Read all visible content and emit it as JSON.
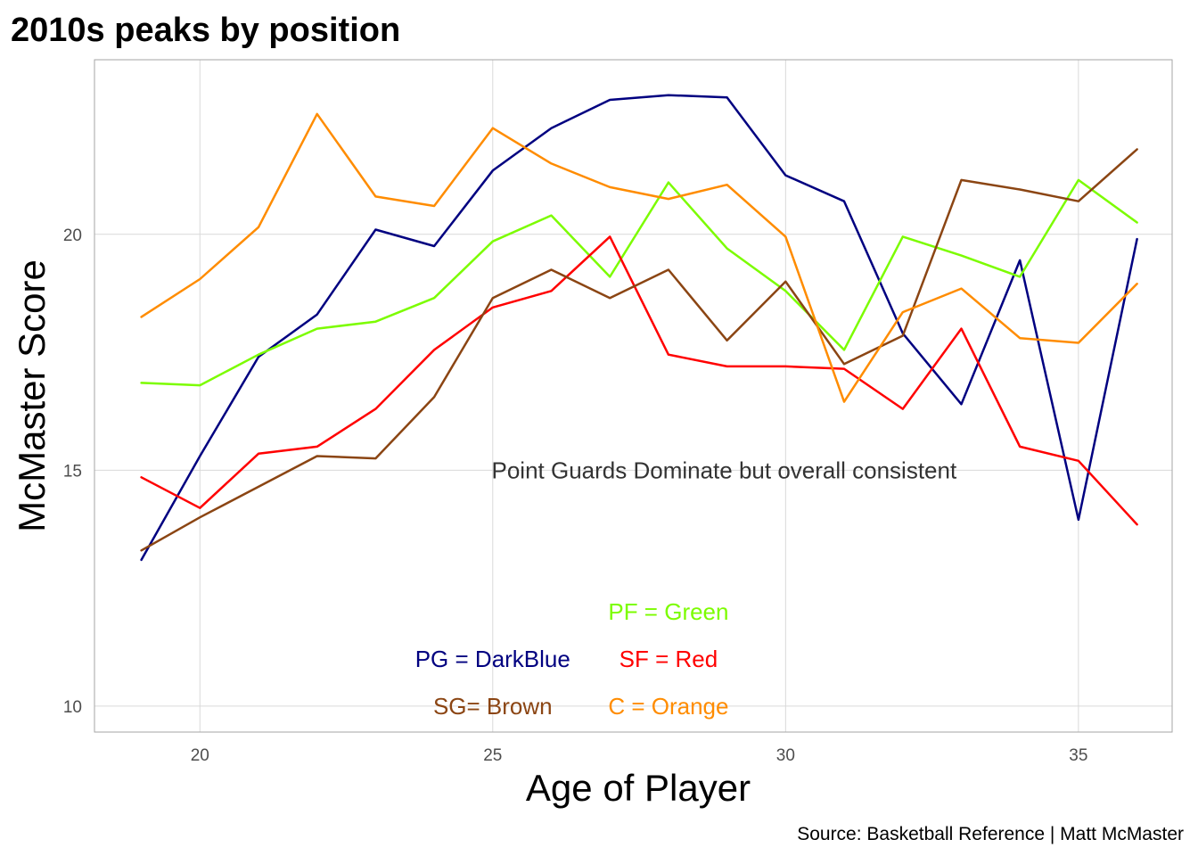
{
  "chart_data": {
    "type": "line",
    "title": "2010s peaks by position",
    "xlabel": "Age of Player",
    "ylabel": "McMaster Score",
    "xlim": [
      18.2,
      36.6
    ],
    "ylim": [
      9.45,
      23.7
    ],
    "x_ticks": [
      20,
      25,
      30,
      35
    ],
    "y_ticks": [
      10,
      15,
      20
    ],
    "grid": true,
    "legend": "none",
    "x": [
      19,
      20,
      21,
      22,
      23,
      24,
      25,
      26,
      27,
      28,
      29,
      30,
      31,
      32,
      33,
      34,
      35,
      36
    ],
    "series": [
      {
        "color": "#000080",
        "values": [
          13.1,
          15.3,
          17.4,
          18.3,
          20.1,
          19.75,
          21.35,
          22.25,
          22.85,
          22.95,
          22.9,
          21.25,
          20.7,
          17.9,
          16.4,
          19.45,
          13.95,
          19.9
        ]
      },
      {
        "color": "#7CFC00",
        "values": [
          16.85,
          16.8,
          17.45,
          18.0,
          18.15,
          18.65,
          19.85,
          20.4,
          19.1,
          21.1,
          19.7,
          18.8,
          17.55,
          19.95,
          19.55,
          19.1,
          21.15,
          20.25
        ]
      },
      {
        "color": "#FF0000",
        "values": [
          14.85,
          14.2,
          15.35,
          15.5,
          16.3,
          17.55,
          18.45,
          18.8,
          19.95,
          17.45,
          17.2,
          17.2,
          17.15,
          16.3,
          18.0,
          15.5,
          15.2,
          13.85
        ]
      },
      {
        "color": "#8B4513",
        "values": [
          13.3,
          14.0,
          14.65,
          15.3,
          15.25,
          16.55,
          18.65,
          19.25,
          18.65,
          19.25,
          17.75,
          19.0,
          17.25,
          17.85,
          21.15,
          20.95,
          20.7,
          21.8
        ]
      },
      {
        "color": "#FF8C00",
        "values": [
          18.25,
          19.05,
          20.15,
          22.55,
          20.8,
          20.6,
          22.25,
          21.5,
          21.0,
          20.75,
          21.05,
          19.95,
          16.45,
          18.35,
          18.85,
          17.8,
          17.7,
          18.95
        ]
      }
    ],
    "annotations": [
      {
        "text": "Point Guards Dominate but overall consistent",
        "x": 28.95,
        "y": 15.0,
        "color": "#333333"
      },
      {
        "text": "PF = Green",
        "x": 28.0,
        "y": 12.0,
        "color": "#7CFC00"
      },
      {
        "text": "PG = DarkBlue",
        "x": 25.0,
        "y": 11.0,
        "color": "#000080"
      },
      {
        "text": "SF = Red",
        "x": 28.0,
        "y": 11.0,
        "color": "#FF0000"
      },
      {
        "text": "SG= Brown",
        "x": 25.0,
        "y": 10.0,
        "color": "#8B4513"
      },
      {
        "text": "C = Orange",
        "x": 28.0,
        "y": 10.0,
        "color": "#FF8C00"
      }
    ],
    "caption": "Source: Basketball Reference | Matt McMaster"
  }
}
